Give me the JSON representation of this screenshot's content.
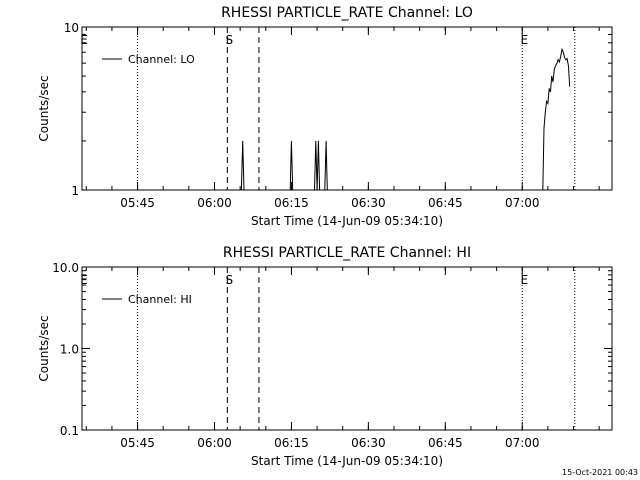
{
  "footer_timestamp": "15-Oct-2021 00:43",
  "chart_data": [
    {
      "type": "line",
      "title": "RHESSI PARTICLE_RATE Channel: LO",
      "xlabel": "Start Time (14-Jun-09 05:34:10)",
      "ylabel": "Counts/sec",
      "yscale": "log",
      "ylim": [
        1,
        10
      ],
      "xlim": [
        "05:34:10",
        "07:17:30"
      ],
      "x_ticks": [
        "05:45",
        "06:00",
        "06:15",
        "06:30",
        "06:45",
        "07:00"
      ],
      "y_ticks": [
        "1",
        "10"
      ],
      "legend": {
        "entries": [
          "Channel: LO"
        ],
        "placement": "top-left"
      },
      "markers": [
        {
          "label": "E",
          "time": "05:34:10",
          "style": "dotted"
        },
        {
          "label": "",
          "time": "05:45:00",
          "style": "dotted"
        },
        {
          "label": "S",
          "time": "06:02:30",
          "style": "dashed"
        },
        {
          "label": "",
          "time": "06:08:40",
          "style": "dashed"
        },
        {
          "label": "E",
          "time": "07:00:00",
          "style": "dotted"
        },
        {
          "label": "",
          "time": "07:10:15",
          "style": "dotted"
        }
      ],
      "series": [
        {
          "name": "Channel: LO",
          "values": [
            [
              "06:05:15",
              1
            ],
            [
              "06:05:30",
              2
            ],
            [
              "06:05:45",
              1
            ],
            [
              "06:14:45",
              1
            ],
            [
              "06:15:00",
              2
            ],
            [
              "06:15:15",
              1
            ],
            [
              "06:19:30",
              1
            ],
            [
              "06:19:45",
              2
            ],
            [
              "06:20:00",
              1
            ],
            [
              "06:20:15",
              2
            ],
            [
              "06:20:30",
              1
            ],
            [
              "06:21:30",
              1
            ],
            [
              "06:21:45",
              2
            ],
            [
              "06:22:00",
              1
            ],
            [
              "07:04:00",
              1
            ],
            [
              "07:04:15",
              2.4
            ],
            [
              "07:04:30",
              3
            ],
            [
              "07:04:45",
              3.5
            ],
            [
              "07:05:00",
              3.4
            ],
            [
              "07:05:15",
              4.2
            ],
            [
              "07:05:30",
              4.0
            ],
            [
              "07:05:45",
              5.0
            ],
            [
              "07:06:00",
              4.6
            ],
            [
              "07:06:15",
              5.5
            ],
            [
              "07:06:30",
              5.8
            ],
            [
              "07:06:45",
              6.0
            ],
            [
              "07:07:00",
              6.3
            ],
            [
              "07:07:15",
              6.1
            ],
            [
              "07:07:30",
              6.6
            ],
            [
              "07:07:45",
              7.3
            ],
            [
              "07:08:00",
              7.0
            ],
            [
              "07:08:15",
              6.5
            ],
            [
              "07:08:30",
              6.3
            ],
            [
              "07:08:45",
              6.4
            ],
            [
              "07:09:00",
              5.8
            ],
            [
              "07:09:15",
              4.3
            ]
          ]
        }
      ]
    },
    {
      "type": "line",
      "title": "RHESSI PARTICLE_RATE Channel: HI",
      "xlabel": "Start Time (14-Jun-09 05:34:10)",
      "ylabel": "Counts/sec",
      "yscale": "log",
      "ylim": [
        0.1,
        10
      ],
      "xlim": [
        "05:34:10",
        "07:17:30"
      ],
      "x_ticks": [
        "05:45",
        "06:00",
        "06:15",
        "06:30",
        "06:45",
        "07:00"
      ],
      "y_ticks": [
        "0.1",
        "1.0",
        "10.0"
      ],
      "legend": {
        "entries": [
          "Channel: HI"
        ],
        "placement": "top-left"
      },
      "markers": [
        {
          "label": "E",
          "time": "05:34:10",
          "style": "dotted"
        },
        {
          "label": "",
          "time": "05:45:00",
          "style": "dotted"
        },
        {
          "label": "S",
          "time": "06:02:30",
          "style": "dashed"
        },
        {
          "label": "",
          "time": "06:08:40",
          "style": "dashed"
        },
        {
          "label": "E",
          "time": "07:00:00",
          "style": "dotted"
        },
        {
          "label": "",
          "time": "07:10:15",
          "style": "dotted"
        }
      ],
      "series": [
        {
          "name": "Channel: HI",
          "values": []
        }
      ]
    }
  ]
}
